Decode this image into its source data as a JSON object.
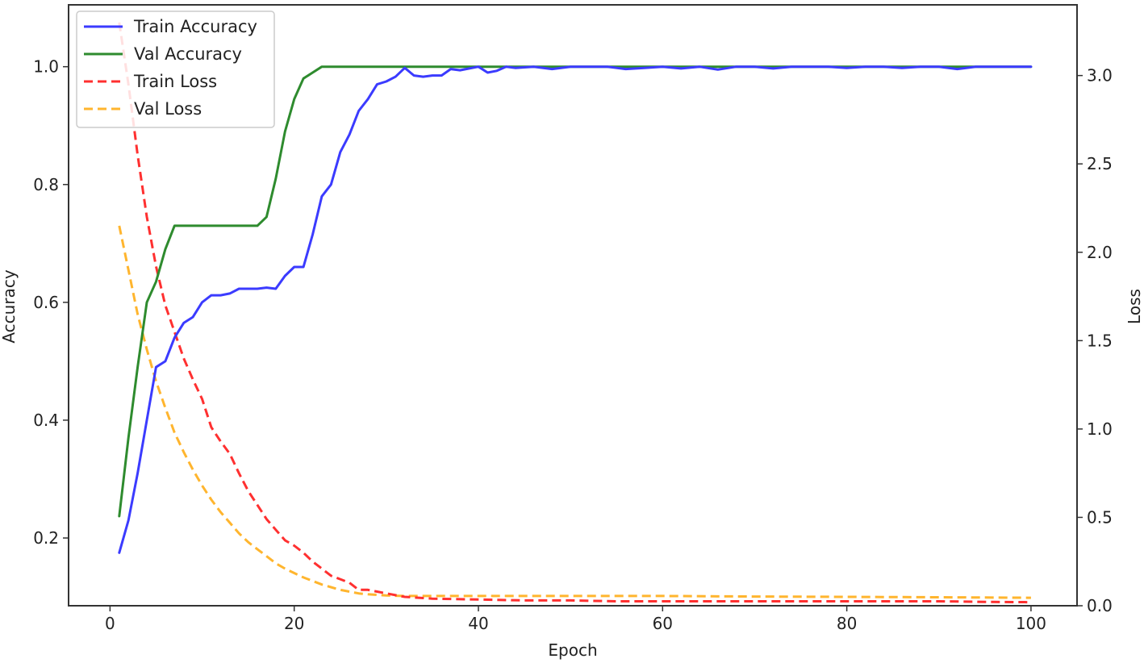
{
  "chart_data": {
    "type": "line",
    "xlabel": "Epoch",
    "ylabel_left": "Accuracy",
    "ylabel_right": "Loss",
    "xlim": [
      -4.5,
      105
    ],
    "ylim_left": [
      0.085,
      1.105
    ],
    "ylim_right": [
      0,
      3.4
    ],
    "x_ticks": [
      0,
      20,
      40,
      60,
      80,
      100
    ],
    "y_left_ticks": [
      0.2,
      0.4,
      0.6,
      0.8,
      1.0
    ],
    "y_left_tick_labels": [
      "0.2",
      "0.4",
      "0.6",
      "0.8",
      "1.0"
    ],
    "y_right_ticks": [
      0,
      0.5,
      1.0,
      1.5,
      2.0,
      2.5,
      3.0
    ],
    "y_right_tick_labels": [
      "0.0",
      "0.5",
      "1.0",
      "1.5",
      "2.0",
      "2.5",
      "3.0"
    ],
    "grid": false,
    "legend_position": "top-left",
    "series": [
      {
        "name": "Train Accuracy",
        "axis": "left",
        "color": "#3b3bff",
        "style": "solid",
        "points": [
          [
            1,
            0.175
          ],
          [
            2,
            0.23
          ],
          [
            3,
            0.31
          ],
          [
            4,
            0.4
          ],
          [
            5,
            0.49
          ],
          [
            6,
            0.5
          ],
          [
            7,
            0.54
          ],
          [
            8,
            0.565
          ],
          [
            9,
            0.575
          ],
          [
            10,
            0.6
          ],
          [
            11,
            0.612
          ],
          [
            12,
            0.612
          ],
          [
            13,
            0.615
          ],
          [
            14,
            0.623
          ],
          [
            15,
            0.623
          ],
          [
            16,
            0.623
          ],
          [
            17,
            0.625
          ],
          [
            18,
            0.623
          ],
          [
            19,
            0.645
          ],
          [
            20,
            0.66
          ],
          [
            21,
            0.66
          ],
          [
            22,
            0.715
          ],
          [
            23,
            0.78
          ],
          [
            24,
            0.8
          ],
          [
            25,
            0.855
          ],
          [
            26,
            0.885
          ],
          [
            27,
            0.925
          ],
          [
            28,
            0.945
          ],
          [
            29,
            0.97
          ],
          [
            30,
            0.975
          ],
          [
            31,
            0.983
          ],
          [
            32,
            0.998
          ],
          [
            33,
            0.985
          ],
          [
            34,
            0.983
          ],
          [
            35,
            0.985
          ],
          [
            36,
            0.985
          ],
          [
            37,
            0.996
          ],
          [
            38,
            0.994
          ],
          [
            39,
            0.997
          ],
          [
            40,
            1.0
          ],
          [
            41,
            0.99
          ],
          [
            42,
            0.993
          ],
          [
            43,
            1.0
          ],
          [
            44,
            0.998
          ],
          [
            46,
            1.0
          ],
          [
            48,
            0.996
          ],
          [
            50,
            1.0
          ],
          [
            52,
            1.0
          ],
          [
            54,
            1.0
          ],
          [
            56,
            0.996
          ],
          [
            58,
            0.998
          ],
          [
            60,
            1.0
          ],
          [
            62,
            0.997
          ],
          [
            64,
            1.0
          ],
          [
            66,
            0.995
          ],
          [
            68,
            1.0
          ],
          [
            70,
            1.0
          ],
          [
            72,
            0.997
          ],
          [
            74,
            1.0
          ],
          [
            76,
            1.0
          ],
          [
            78,
            1.0
          ],
          [
            80,
            0.998
          ],
          [
            82,
            1.0
          ],
          [
            84,
            1.0
          ],
          [
            86,
            0.998
          ],
          [
            88,
            1.0
          ],
          [
            90,
            1.0
          ],
          [
            92,
            0.996
          ],
          [
            94,
            1.0
          ],
          [
            96,
            1.0
          ],
          [
            98,
            1.0
          ],
          [
            100,
            1.0
          ]
        ]
      },
      {
        "name": "Val Accuracy",
        "axis": "left",
        "color": "#2e8b2e",
        "style": "solid",
        "points": [
          [
            1,
            0.237
          ],
          [
            2,
            0.37
          ],
          [
            3,
            0.49
          ],
          [
            4,
            0.6
          ],
          [
            5,
            0.635
          ],
          [
            6,
            0.69
          ],
          [
            7,
            0.73
          ],
          [
            8,
            0.73
          ],
          [
            10,
            0.73
          ],
          [
            12,
            0.73
          ],
          [
            14,
            0.73
          ],
          [
            16,
            0.73
          ],
          [
            17,
            0.745
          ],
          [
            18,
            0.81
          ],
          [
            19,
            0.89
          ],
          [
            20,
            0.945
          ],
          [
            21,
            0.98
          ],
          [
            22,
            0.99
          ],
          [
            23,
            1.0
          ],
          [
            30,
            1.0
          ],
          [
            40,
            1.0
          ],
          [
            50,
            1.0
          ],
          [
            60,
            1.0
          ],
          [
            70,
            1.0
          ],
          [
            80,
            1.0
          ],
          [
            90,
            1.0
          ],
          [
            100,
            1.0
          ]
        ]
      },
      {
        "name": "Train Loss",
        "axis": "right",
        "color": "#ff3030",
        "style": "dashed",
        "points": [
          [
            1,
            3.3
          ],
          [
            2,
            2.95
          ],
          [
            3,
            2.55
          ],
          [
            4,
            2.2
          ],
          [
            5,
            1.92
          ],
          [
            6,
            1.7
          ],
          [
            7,
            1.55
          ],
          [
            8,
            1.4
          ],
          [
            9,
            1.28
          ],
          [
            10,
            1.17
          ],
          [
            11,
            1.01
          ],
          [
            12,
            0.93
          ],
          [
            13,
            0.86
          ],
          [
            14,
            0.75
          ],
          [
            15,
            0.65
          ],
          [
            16,
            0.57
          ],
          [
            17,
            0.49
          ],
          [
            18,
            0.43
          ],
          [
            19,
            0.37
          ],
          [
            20,
            0.34
          ],
          [
            21,
            0.3
          ],
          [
            22,
            0.25
          ],
          [
            23,
            0.21
          ],
          [
            24,
            0.17
          ],
          [
            25,
            0.15
          ],
          [
            26,
            0.13
          ],
          [
            27,
            0.09
          ],
          [
            28,
            0.09
          ],
          [
            29,
            0.08
          ],
          [
            30,
            0.07
          ],
          [
            32,
            0.05
          ],
          [
            35,
            0.04
          ],
          [
            40,
            0.035
          ],
          [
            45,
            0.03
          ],
          [
            50,
            0.03
          ],
          [
            55,
            0.025
          ],
          [
            60,
            0.025
          ],
          [
            65,
            0.025
          ],
          [
            70,
            0.025
          ],
          [
            75,
            0.025
          ],
          [
            80,
            0.025
          ],
          [
            85,
            0.025
          ],
          [
            90,
            0.025
          ],
          [
            95,
            0.022
          ],
          [
            100,
            0.02
          ]
        ]
      },
      {
        "name": "Val Loss",
        "axis": "right",
        "color": "#ffb52e",
        "style": "dashed",
        "points": [
          [
            1,
            2.15
          ],
          [
            2,
            1.9
          ],
          [
            3,
            1.65
          ],
          [
            4,
            1.45
          ],
          [
            5,
            1.27
          ],
          [
            6,
            1.12
          ],
          [
            7,
            0.98
          ],
          [
            8,
            0.87
          ],
          [
            9,
            0.77
          ],
          [
            10,
            0.68
          ],
          [
            11,
            0.6
          ],
          [
            12,
            0.53
          ],
          [
            13,
            0.47
          ],
          [
            14,
            0.41
          ],
          [
            15,
            0.36
          ],
          [
            16,
            0.32
          ],
          [
            17,
            0.28
          ],
          [
            18,
            0.24
          ],
          [
            19,
            0.21
          ],
          [
            20,
            0.185
          ],
          [
            21,
            0.16
          ],
          [
            22,
            0.14
          ],
          [
            23,
            0.12
          ],
          [
            24,
            0.105
          ],
          [
            25,
            0.09
          ],
          [
            26,
            0.08
          ],
          [
            27,
            0.07
          ],
          [
            28,
            0.065
          ],
          [
            30,
            0.058
          ],
          [
            32,
            0.055
          ],
          [
            35,
            0.055
          ],
          [
            40,
            0.055
          ],
          [
            50,
            0.055
          ],
          [
            60,
            0.055
          ],
          [
            70,
            0.052
          ],
          [
            80,
            0.05
          ],
          [
            90,
            0.048
          ],
          [
            100,
            0.045
          ]
        ]
      }
    ]
  }
}
